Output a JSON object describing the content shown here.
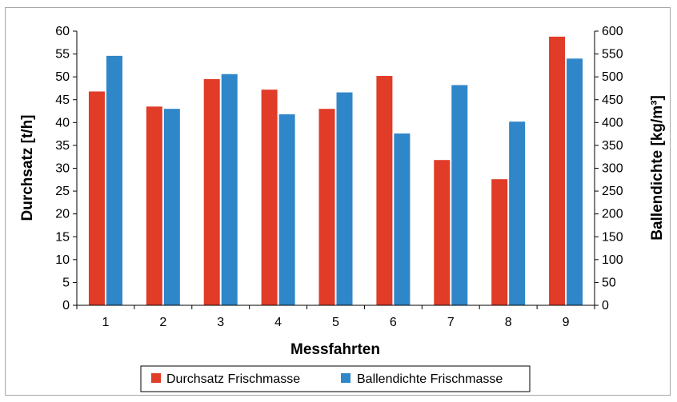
{
  "chart_data": {
    "type": "bar",
    "categories": [
      "1",
      "2",
      "3",
      "4",
      "5",
      "6",
      "7",
      "8",
      "9"
    ],
    "xlabel": "Messfahrten",
    "ylabel": "Durchsatz [t/h]",
    "y2label": "Ballendichte [kg/m³]",
    "ylim": [
      0,
      60
    ],
    "y2lim": [
      0,
      600
    ],
    "yticks": [
      "0",
      "5",
      "10",
      "15",
      "20",
      "25",
      "30",
      "35",
      "40",
      "45",
      "50",
      "55",
      "60"
    ],
    "y2ticks": [
      "0",
      "50",
      "100",
      "150",
      "200",
      "250",
      "300",
      "350",
      "400",
      "450",
      "500",
      "550",
      "600"
    ],
    "grid": false,
    "legend_position": "bottom",
    "series": [
      {
        "name": "Durchsatz Frischmasse",
        "axis": "left",
        "color": "#e03c28",
        "values": [
          46.8,
          43.5,
          49.5,
          47.2,
          43.0,
          50.2,
          31.8,
          27.6,
          58.8
        ]
      },
      {
        "name": "Ballendichte Frischmasse",
        "axis": "right",
        "color": "#2f86c8",
        "values": [
          546,
          430,
          506,
          418,
          466,
          376,
          482,
          402,
          540
        ]
      }
    ]
  }
}
